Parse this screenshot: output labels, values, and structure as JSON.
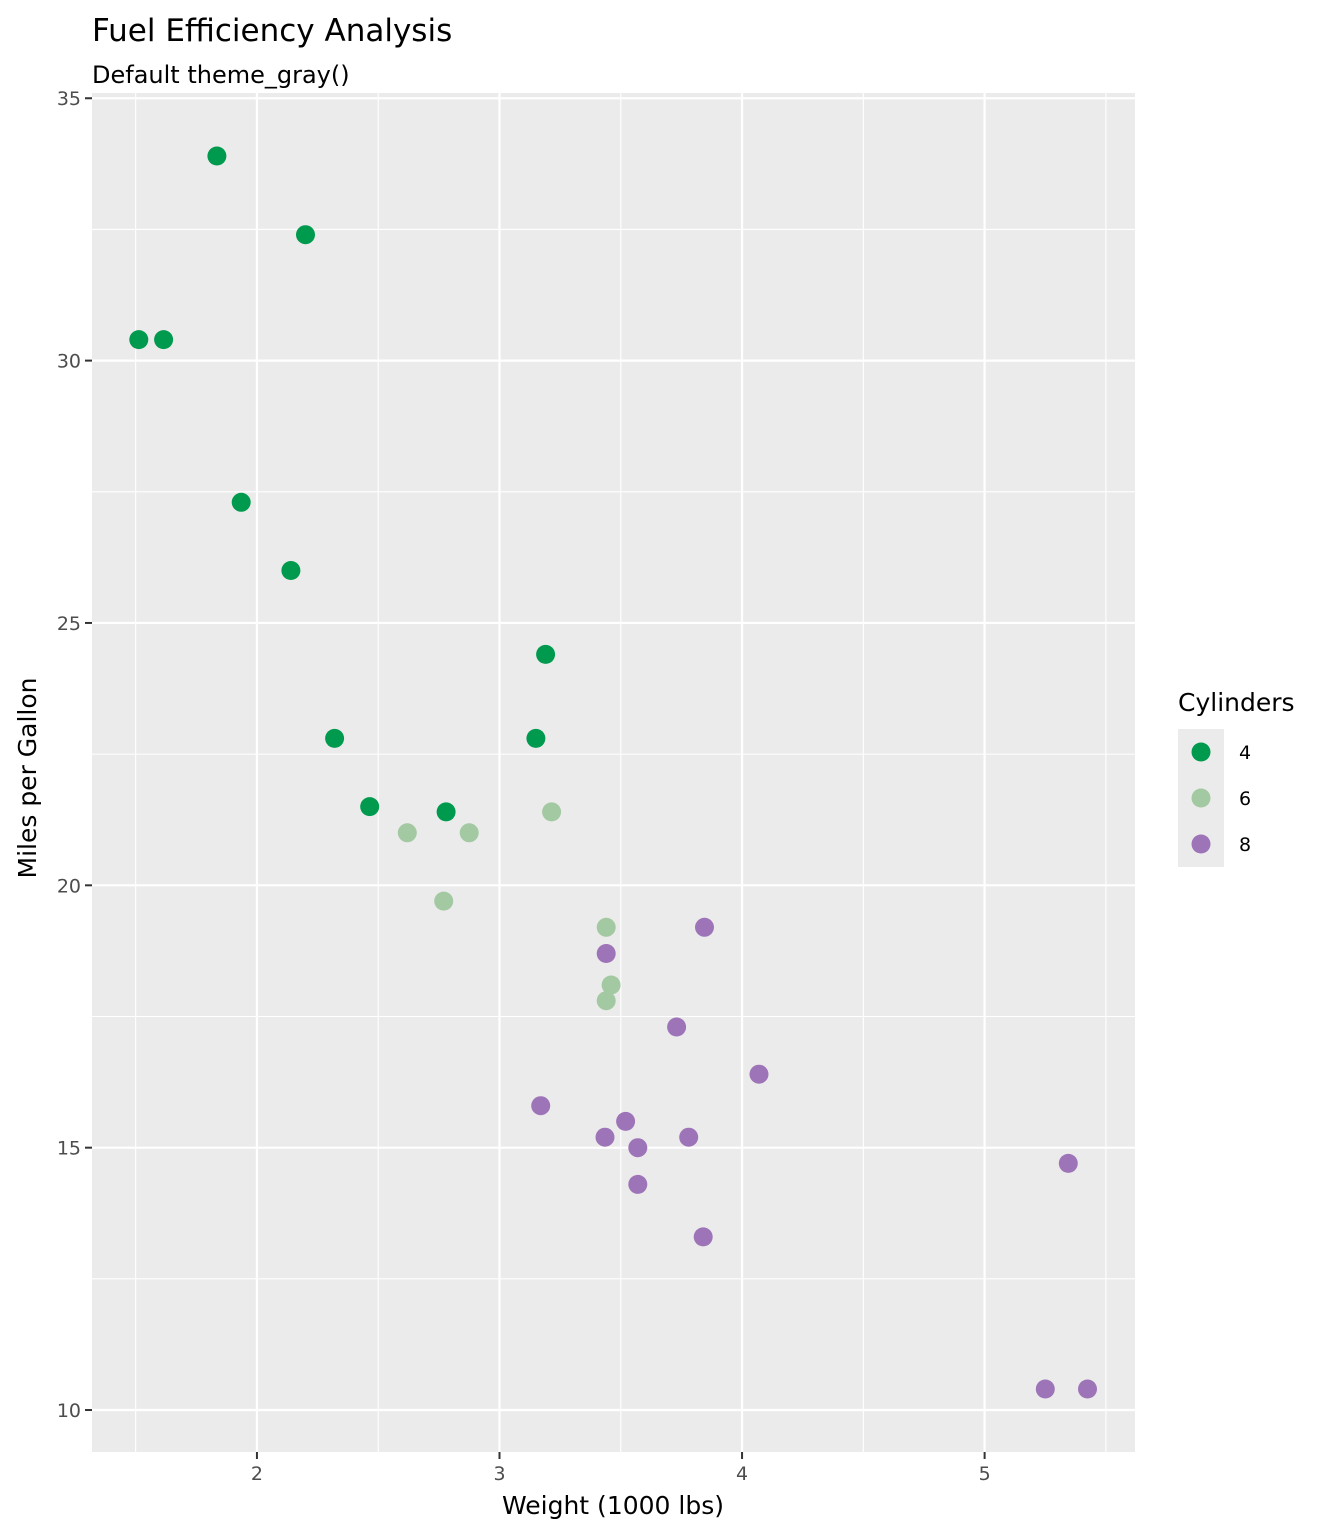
{
  "chart_data": {
    "type": "scatter",
    "title": "Fuel Efficiency Analysis",
    "subtitle": "Default theme_gray()",
    "xlabel": "Weight (1000 lbs)",
    "ylabel": "Miles per Gallon",
    "xlim": [
      1.32,
      5.62
    ],
    "ylim": [
      9.2,
      35.1
    ],
    "x_ticks": [
      2,
      3,
      4,
      5
    ],
    "x_tick_labels": [
      "2",
      "3",
      "4",
      "5"
    ],
    "y_ticks": [
      10,
      15,
      20,
      25,
      30,
      35
    ],
    "y_tick_labels": [
      "10",
      "15",
      "20",
      "25",
      "30",
      "35"
    ],
    "grid": true,
    "legend": {
      "title": "Cylinders",
      "position": "right"
    },
    "series": [
      {
        "name": "4",
        "color": "#009a4e",
        "points": [
          [
            1.835,
            33.9
          ],
          [
            2.2,
            32.4
          ],
          [
            1.513,
            30.4
          ],
          [
            1.615,
            30.4
          ],
          [
            1.935,
            27.3
          ],
          [
            2.14,
            26.0
          ],
          [
            3.19,
            24.4
          ],
          [
            2.32,
            22.8
          ],
          [
            3.15,
            22.8
          ],
          [
            2.465,
            21.5
          ],
          [
            2.78,
            21.4
          ]
        ]
      },
      {
        "name": "6",
        "color": "#a3c9a2",
        "points": [
          [
            2.62,
            21.0
          ],
          [
            2.875,
            21.0
          ],
          [
            3.215,
            21.4
          ],
          [
            2.77,
            19.7
          ],
          [
            3.44,
            19.2
          ],
          [
            3.46,
            18.1
          ],
          [
            3.44,
            17.8
          ]
        ]
      },
      {
        "name": "8",
        "color": "#9e74b8",
        "points": [
          [
            3.44,
            18.7
          ],
          [
            3.845,
            19.2
          ],
          [
            3.73,
            17.3
          ],
          [
            4.07,
            16.4
          ],
          [
            3.17,
            15.8
          ],
          [
            3.52,
            15.5
          ],
          [
            3.435,
            15.2
          ],
          [
            3.78,
            15.2
          ],
          [
            3.57,
            15.0
          ],
          [
            3.57,
            14.3
          ],
          [
            5.345,
            14.7
          ],
          [
            3.84,
            13.3
          ],
          [
            5.25,
            10.4
          ],
          [
            5.424,
            10.4
          ]
        ]
      }
    ]
  }
}
